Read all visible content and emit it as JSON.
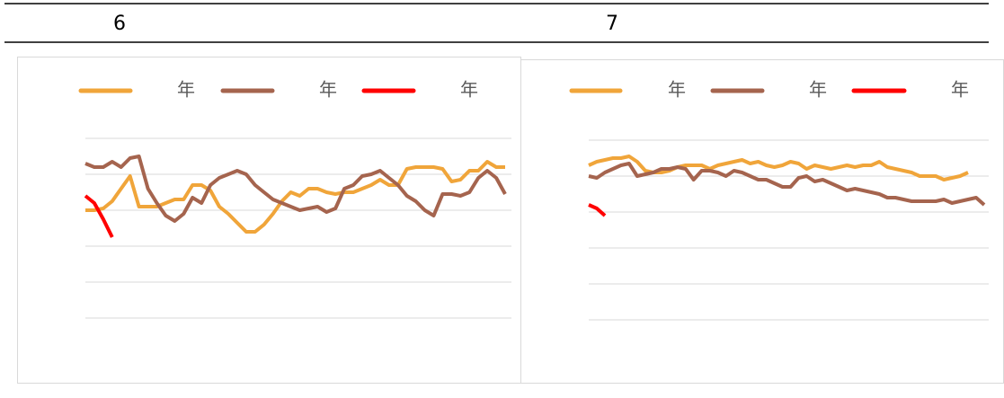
{
  "header": {
    "cells": [
      "6",
      "7"
    ]
  },
  "chart_data": [
    {
      "type": "line",
      "grid": true,
      "ylim": [
        0,
        100
      ],
      "yticks": [
        0,
        20,
        40,
        60,
        80,
        100
      ],
      "categories": [
        null,
        null,
        null,
        null,
        null,
        null,
        null,
        null,
        null,
        null,
        null,
        null,
        null,
        null,
        null,
        null,
        null,
        null,
        null,
        null,
        null,
        null,
        null,
        null,
        null,
        null,
        null,
        null,
        null,
        null,
        null,
        null,
        null,
        null,
        null,
        null,
        null,
        null,
        null,
        null,
        null,
        null,
        null,
        null,
        null,
        null,
        null,
        null
      ],
      "series": [
        {
          "name": "年",
          "color": "#f0a53a",
          "values": [
            60,
            60,
            61,
            65,
            72,
            79,
            62,
            62,
            62,
            64,
            66,
            66,
            74,
            74,
            71,
            62,
            58,
            53,
            48,
            48,
            52,
            58,
            65,
            70,
            68,
            72,
            72,
            70,
            69,
            70,
            70,
            72,
            74,
            77,
            74,
            74,
            83,
            84,
            84,
            84,
            83,
            76,
            77,
            82,
            82,
            87,
            84,
            84
          ]
        },
        {
          "name": "年",
          "color": "#a5644e",
          "values": [
            86,
            84,
            84,
            87,
            84,
            89,
            90,
            72,
            64,
            57,
            54,
            58,
            67,
            64,
            74,
            78,
            80,
            82,
            80,
            74,
            70,
            66,
            64,
            62,
            60,
            61,
            62,
            59,
            61,
            72,
            74,
            79,
            80,
            82,
            78,
            74,
            68,
            65,
            60,
            57,
            69,
            69,
            68,
            70,
            78,
            82,
            78,
            69
          ]
        },
        {
          "name": "年",
          "color": "#ff0000",
          "values": [
            68,
            64,
            55,
            45,
            null,
            null,
            null,
            null,
            null,
            null,
            null,
            null,
            null,
            null,
            null,
            null,
            null,
            null,
            null,
            null,
            null,
            null,
            null,
            null,
            null,
            null,
            null,
            null,
            null,
            null,
            null,
            null,
            null,
            null,
            null,
            null,
            null,
            null,
            null,
            null,
            null,
            null,
            null,
            null,
            null,
            null,
            null,
            null
          ]
        }
      ]
    },
    {
      "type": "line",
      "grid": true,
      "ylim": [
        0,
        100
      ],
      "yticks": [
        0,
        20,
        40,
        60,
        80,
        100
      ],
      "categories": [
        null,
        null,
        null,
        null,
        null,
        null,
        null,
        null,
        null,
        null,
        null,
        null,
        null,
        null,
        null,
        null,
        null,
        null,
        null,
        null,
        null,
        null,
        null,
        null,
        null,
        null,
        null,
        null,
        null,
        null,
        null,
        null,
        null,
        null,
        null,
        null,
        null,
        null,
        null,
        null,
        null,
        null,
        null,
        null,
        null,
        null,
        null,
        null,
        null,
        null
      ],
      "series": [
        {
          "name": "年",
          "color": "#f0a53a",
          "values": [
            86,
            88,
            89,
            90,
            90,
            91,
            88,
            83,
            82,
            82,
            83,
            85,
            86,
            86,
            86,
            84,
            86,
            87,
            88,
            89,
            87,
            88,
            86,
            85,
            86,
            88,
            87,
            84,
            86,
            85,
            84,
            85,
            86,
            85,
            86,
            86,
            88,
            85,
            84,
            83,
            82,
            80,
            80,
            80,
            78,
            79,
            80,
            82,
            null,
            null
          ]
        },
        {
          "name": "年",
          "color": "#a5644e",
          "values": [
            80,
            79,
            82,
            84,
            86,
            87,
            80,
            81,
            82,
            84,
            84,
            85,
            84,
            78,
            83,
            83,
            82,
            80,
            83,
            82,
            80,
            78,
            78,
            76,
            74,
            74,
            79,
            80,
            77,
            78,
            76,
            74,
            72,
            73,
            72,
            71,
            70,
            68,
            68,
            67,
            66,
            66,
            66,
            66,
            67,
            65,
            66,
            67,
            68,
            64
          ]
        },
        {
          "name": "年",
          "color": "#ff0000",
          "values": [
            64,
            62,
            58,
            null,
            null,
            null,
            null,
            null,
            null,
            null,
            null,
            null,
            null,
            null,
            null,
            null,
            null,
            null,
            null,
            null,
            null,
            null,
            null,
            null,
            null,
            null,
            null,
            null,
            null,
            null,
            null,
            null,
            null,
            null,
            null,
            null,
            null,
            null,
            null,
            null,
            null,
            null,
            null,
            null,
            null,
            null,
            null,
            null,
            null,
            null
          ]
        }
      ]
    }
  ]
}
